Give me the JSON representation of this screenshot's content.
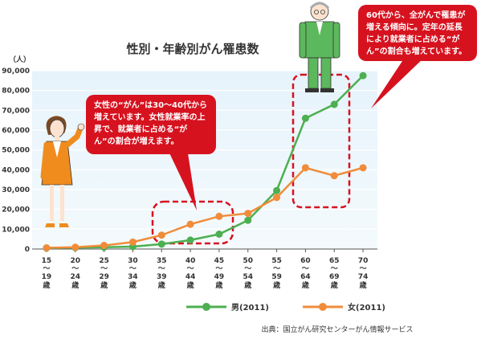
{
  "chart_data": {
    "type": "line",
    "title": "性別・年齢別がん罹患数",
    "unit_label": "（人）",
    "categories": [
      "15〜19歳",
      "20〜24歳",
      "25〜29歳",
      "30〜34歳",
      "35〜39歳",
      "40〜44歳",
      "45〜49歳",
      "50〜54歳",
      "55〜59歳",
      "60〜64歳",
      "65〜69歳",
      "70〜74歳"
    ],
    "x_label_parts": [
      [
        "15",
        "19"
      ],
      [
        "20",
        "24"
      ],
      [
        "25",
        "29"
      ],
      [
        "30",
        "34"
      ],
      [
        "35",
        "39"
      ],
      [
        "40",
        "44"
      ],
      [
        "45",
        "49"
      ],
      [
        "50",
        "54"
      ],
      [
        "55",
        "59"
      ],
      [
        "60",
        "64"
      ],
      [
        "65",
        "69"
      ],
      [
        "70",
        "74"
      ]
    ],
    "x_tilde": "〜",
    "x_unit": "歳",
    "y_ticks": [
      "0",
      "10,000",
      "20,000",
      "30,000",
      "40,000",
      "50,000",
      "60,000",
      "70,000",
      "80,000",
      "90,000"
    ],
    "ylim": [
      0,
      90000
    ],
    "grid": true,
    "legend_position": "bottom-right",
    "series": [
      {
        "name": "男(2011)",
        "color": "#4caf50",
        "values": [
          500,
          700,
          900,
          1200,
          2500,
          4500,
          7500,
          14500,
          29500,
          66000,
          73000,
          87500
        ]
      },
      {
        "name": "女(2011)",
        "color": "#f08c3a",
        "values": [
          600,
          900,
          1800,
          3500,
          7000,
          12500,
          16500,
          18000,
          26000,
          41000,
          37000,
          41000
        ]
      }
    ]
  },
  "callouts": {
    "female": "女性の“がん”は30〜40代から増えています。女性就業率の上昇で、就業者に占める“がん”の割合が増えます。",
    "male": "60代から、全がんで罹患が増える傾向に。定年の延長により就業者に占める“がん”の割合も増えています。"
  },
  "source": "出典：国立がん研究センターがん情報サービス"
}
